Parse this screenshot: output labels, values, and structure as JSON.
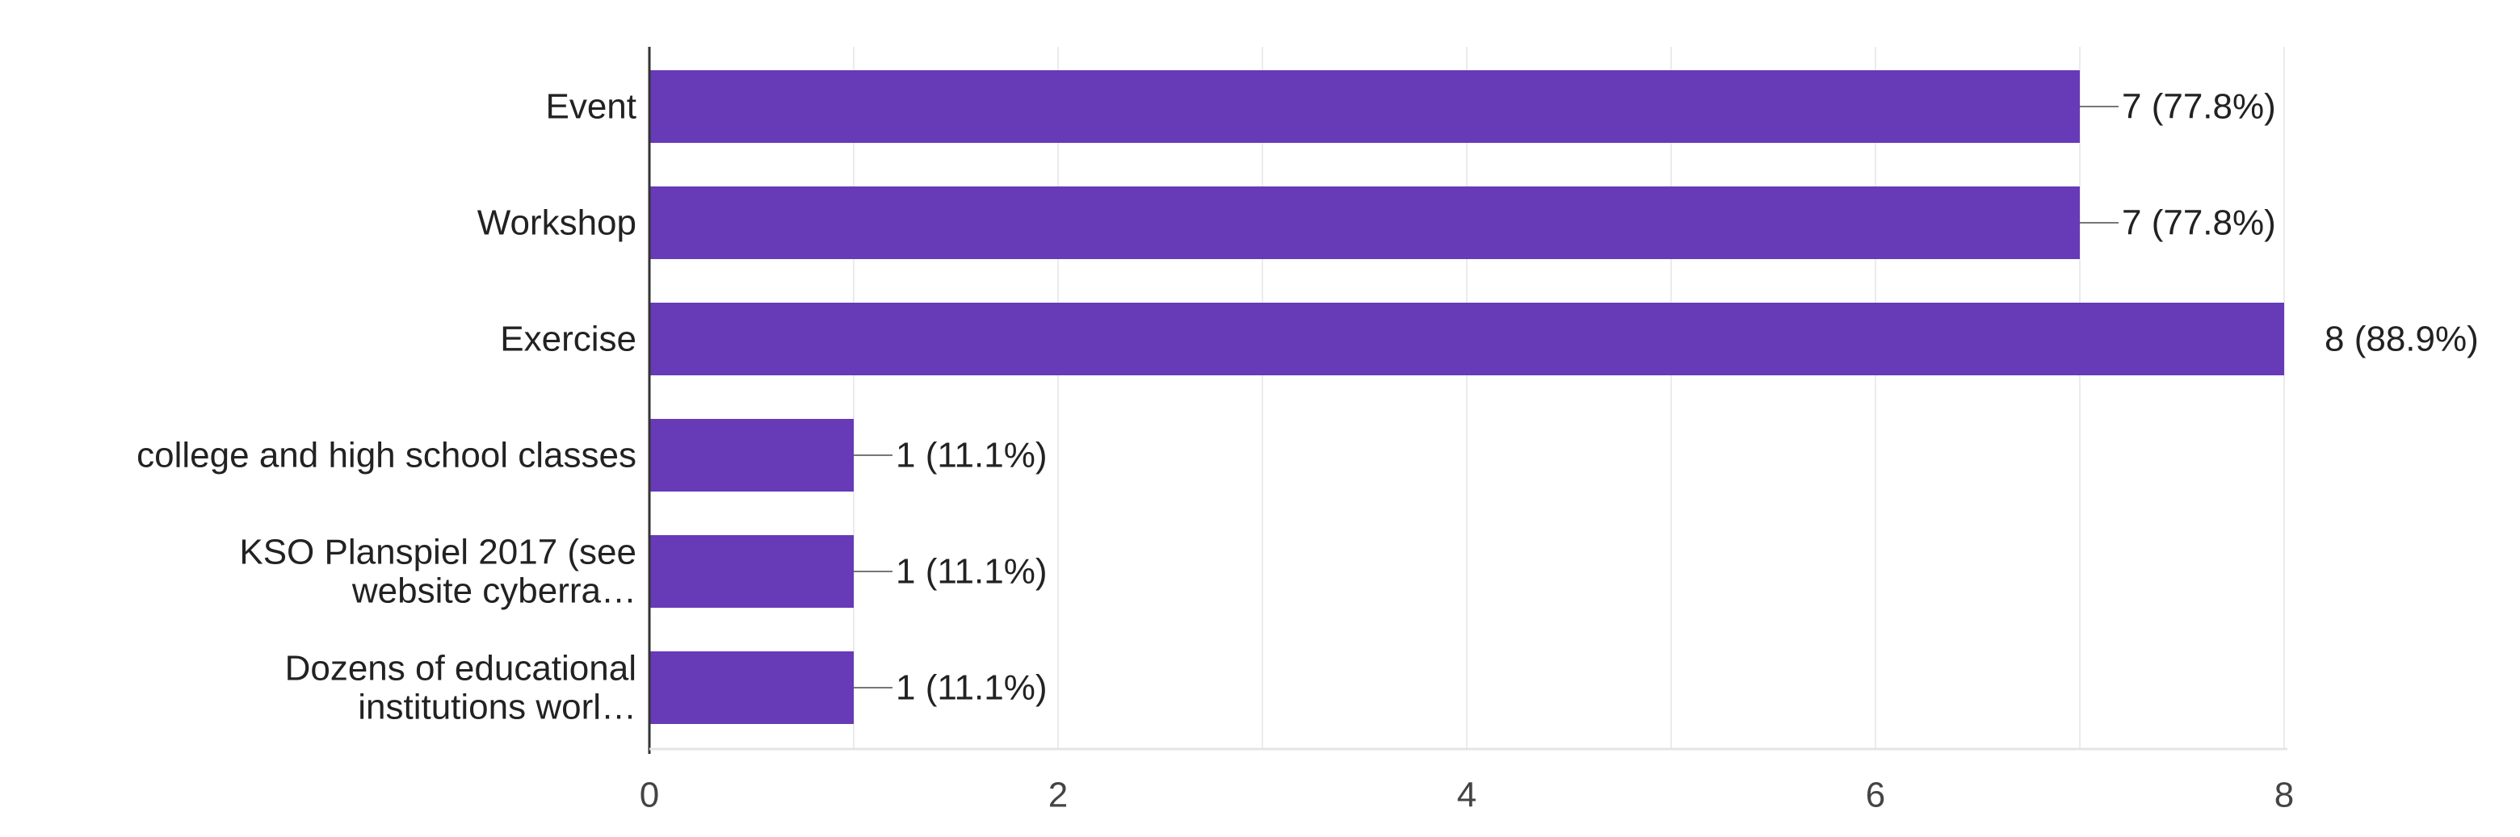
{
  "chart_data": {
    "type": "bar",
    "orientation": "horizontal",
    "categories": [
      [
        "Event"
      ],
      [
        "Workshop"
      ],
      [
        "Exercise"
      ],
      [
        "college and high school classes"
      ],
      [
        "KSO Planspiel 2017 (see",
        "website cyberra…"
      ],
      [
        "Dozens of educational",
        "institutions worl…"
      ]
    ],
    "values": [
      7,
      7,
      8,
      1,
      1,
      1
    ],
    "data_labels": [
      "7 (77.8%)",
      "7 (77.8%)",
      "8 (88.9%)",
      "1 (11.1%)",
      "1 (11.1%)",
      "1 (11.1%)"
    ],
    "xticks": [
      "0",
      "2",
      "4",
      "6",
      "8"
    ],
    "xlim": [
      0,
      8
    ],
    "title": "",
    "xlabel": "",
    "ylabel": "",
    "grid": true,
    "legend": "none",
    "colors": {
      "bar": "#673ab7",
      "grid": "#ebebeb",
      "axis": "#333333",
      "leader": "#777777"
    }
  }
}
